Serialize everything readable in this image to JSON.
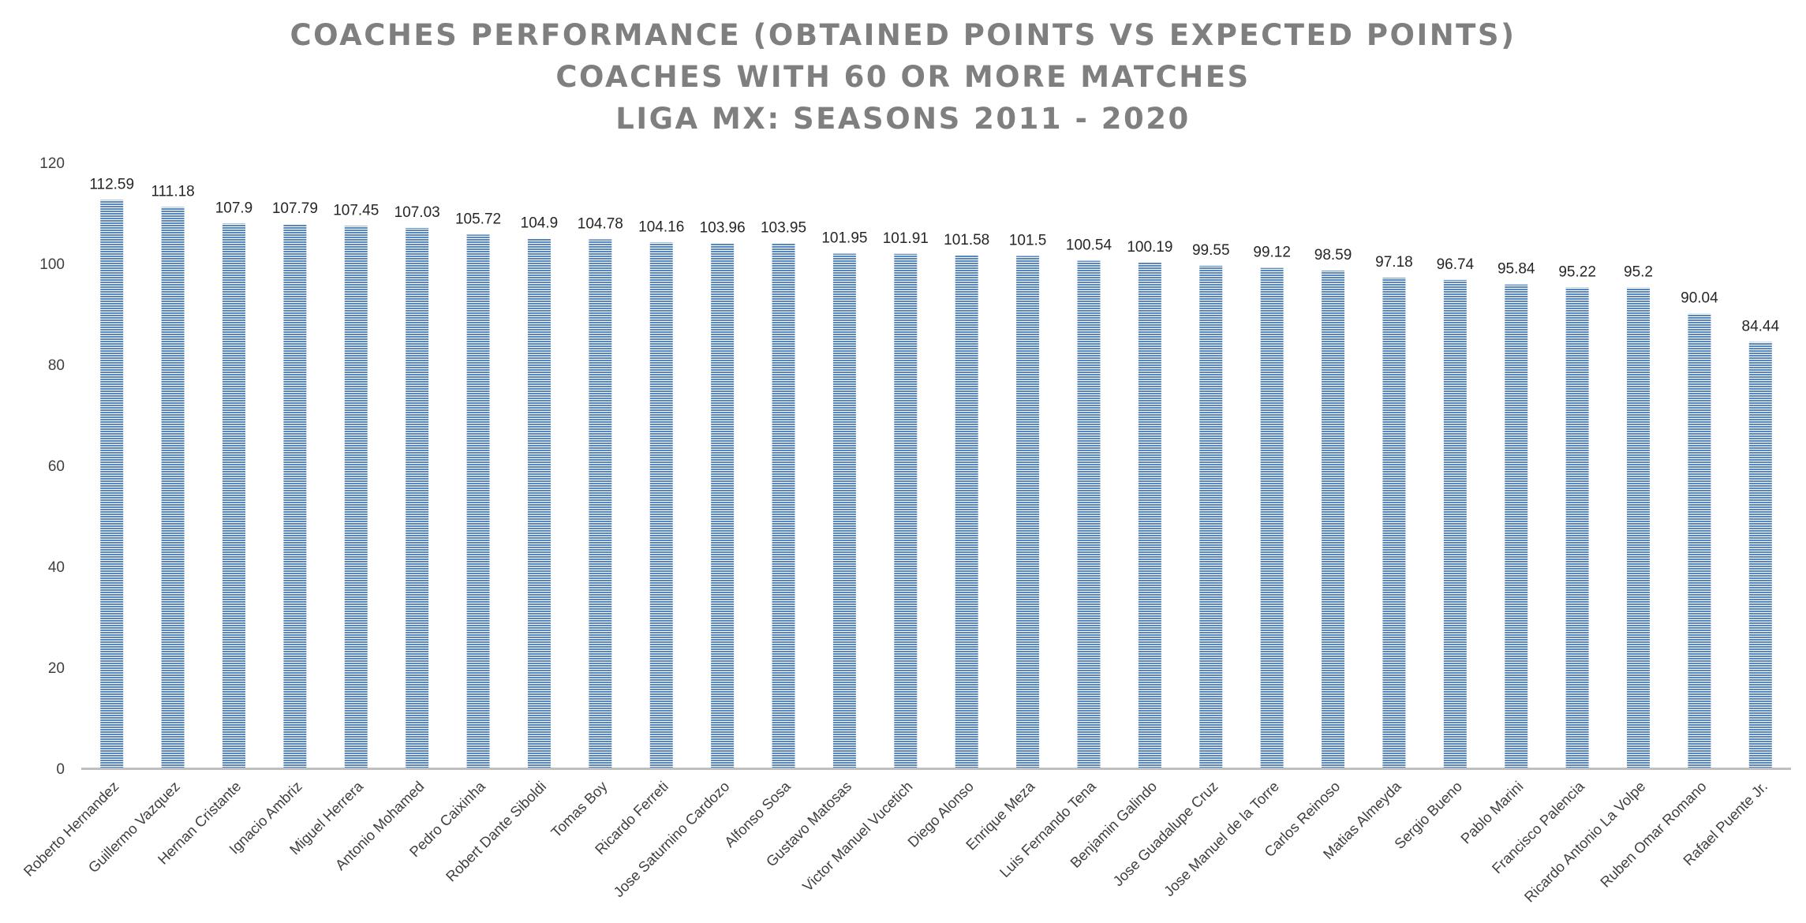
{
  "chart_data": {
    "type": "bar",
    "title_lines": [
      "COACHES PERFORMANCE (OBTAINED POINTS VS EXPECTED POINTS)",
      "COACHES WITH 60 OR MORE MATCHES",
      "LIGA MX: SEASONS 2011 - 2020"
    ],
    "xlabel": "",
    "ylabel": "",
    "ylim": [
      0,
      120
    ],
    "yticks": [
      "0",
      "20",
      "40",
      "60",
      "80",
      "100",
      "120"
    ],
    "grid": false,
    "legend": "none",
    "bar_color": "#4f81bd",
    "bar_stripe_color": "#ffffff",
    "categories": [
      "Roberto Hernandez",
      "Guillermo Vazquez",
      "Hernan Cristante",
      "Ignacio Ambriz",
      "Miguel Herrera",
      "Antonio Mohamed",
      "Pedro Caixinha",
      "Robert Dante Siboldi",
      "Tomas Boy",
      "Ricardo Ferreti",
      "Jose Saturnino Cardozo",
      "Alfonso Sosa",
      "Gustavo Matosas",
      "Victor Manuel Vucetich",
      "Diego Alonso",
      "Enrique Meza",
      "Luis Fernando Tena",
      "Benjamin Galindo",
      "Jose Guadalupe Cruz",
      "Jose Manuel de la Torre",
      "Carlos Reinoso",
      "Matias Almeyda",
      "Sergio Bueno",
      "Pablo Marini",
      "Francisco Palencia",
      "Ricardo Antonio La Volpe",
      "Ruben Omar Romano",
      "Rafael Puente Jr."
    ],
    "values": [
      112.59,
      111.18,
      107.9,
      107.79,
      107.45,
      107.03,
      105.72,
      104.9,
      104.78,
      104.16,
      103.96,
      103.95,
      101.95,
      101.91,
      101.58,
      101.5,
      100.54,
      100.19,
      99.55,
      99.12,
      98.59,
      97.18,
      96.74,
      95.84,
      95.22,
      95.2,
      90.04,
      84.44
    ],
    "data_labels": [
      "112.59",
      "111.18",
      "107.9",
      "107.79",
      "107.45",
      "107.03",
      "105.72",
      "104.9",
      "104.78",
      "104.16",
      "103.96",
      "103.95",
      "101.95",
      "101.91",
      "101.58",
      "101.5",
      "100.54",
      "100.19",
      "99.55",
      "99.12",
      "98.59",
      "97.18",
      "96.74",
      "95.84",
      "95.22",
      "95.2",
      "90.04",
      "84.44"
    ]
  }
}
